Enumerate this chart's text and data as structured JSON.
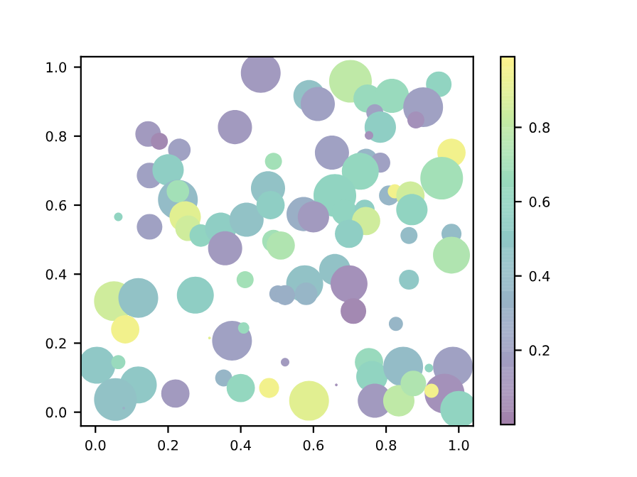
{
  "chart_data": {
    "type": "bubble",
    "x": [
      0.455,
      0.384,
      0.145,
      0.176,
      0.231,
      0.149,
      0.2,
      0.49,
      0.227,
      0.227,
      0.063,
      0.149,
      0.247,
      0.255,
      0.29,
      0.345,
      0.357,
      0.416,
      0.475,
      0.482,
      0.49,
      0.588,
      0.612,
      0.702,
      0.749,
      0.816,
      0.945,
      0.902,
      0.882,
      0.769,
      0.784,
      0.753,
      0.651,
      0.745,
      0.784,
      0.729,
      0.98,
      0.953,
      0.659,
      0.573,
      0.6,
      0.686,
      0.741,
      0.745,
      0.808,
      0.824,
      0.867,
      0.871,
      0.698,
      0.863,
      0.98,
      0.98,
      0.51,
      0.051,
      0.118,
      0.082,
      0.275,
      0.412,
      0.376,
      0.408,
      0.314,
      0.004,
      0.063,
      0.118,
      0.055,
      0.078,
      0.22,
      0.353,
      0.4,
      0.478,
      0.502,
      0.576,
      0.522,
      0.58,
      0.659,
      0.698,
      0.71,
      0.863,
      0.827,
      0.522,
      0.588,
      0.663,
      0.753,
      0.761,
      0.769,
      0.847,
      0.835,
      0.875,
      0.918,
      0.984,
      0.961,
      0.925,
      1.0
    ],
    "values": [
      0.983,
      0.826,
      0.806,
      0.785,
      0.76,
      0.686,
      0.702,
      0.727,
      0.616,
      0.64,
      0.566,
      0.537,
      0.566,
      0.533,
      0.512,
      0.533,
      0.475,
      0.558,
      0.649,
      0.6,
      0.496,
      0.917,
      0.893,
      0.959,
      0.909,
      0.917,
      0.95,
      0.884,
      0.847,
      0.868,
      0.826,
      0.802,
      0.752,
      0.731,
      0.723,
      0.698,
      0.752,
      0.678,
      0.628,
      0.574,
      0.566,
      0.579,
      0.587,
      0.554,
      0.628,
      0.64,
      0.628,
      0.587,
      0.517,
      0.512,
      0.517,
      0.455,
      0.483,
      0.322,
      0.331,
      0.24,
      0.339,
      0.384,
      0.207,
      0.244,
      0.215,
      0.136,
      0.145,
      0.079,
      0.037,
      0.012,
      0.054,
      0.099,
      0.07,
      0.07,
      0.343,
      0.372,
      0.339,
      0.343,
      0.413,
      0.372,
      0.293,
      0.384,
      0.256,
      0.145,
      0.033,
      0.079,
      0.145,
      0.103,
      0.033,
      0.132,
      0.033,
      0.083,
      0.128,
      0.132,
      0.054,
      0.062,
      0.008
    ],
    "sizes": [
      0.87,
      0.64,
      0.36,
      0.16,
      0.28,
      0.36,
      0.54,
      0.16,
      0.87,
      0.28,
      0.04,
      0.36,
      0.54,
      0.36,
      0.28,
      0.54,
      0.64,
      0.64,
      0.64,
      0.44,
      0.28,
      0.54,
      0.64,
      1,
      0.44,
      0.64,
      0.36,
      0.87,
      0.16,
      0.16,
      0.54,
      0.04,
      0.64,
      0.28,
      0.22,
      0.75,
      0.44,
      1,
      1,
      0.64,
      0.54,
      0.36,
      0.22,
      0.44,
      0.22,
      0.11,
      0.44,
      0.54,
      0.44,
      0.16,
      0.22,
      0.75,
      0.44,
      0.87,
      0.87,
      0.44,
      0.75,
      0.16,
      0.87,
      0.07,
      0.004,
      0.75,
      0.11,
      0.75,
      1,
      0.004,
      0.44,
      0.16,
      0.44,
      0.22,
      0.16,
      0.75,
      0.22,
      0.28,
      0.54,
      0.75,
      0.36,
      0.22,
      0.11,
      0.04,
      0.87,
      0.004,
      0.44,
      0.54,
      0.64,
      0.87,
      0.54,
      0.36,
      0.04,
      0.87,
      0.87,
      0.11,
      0.75
    ],
    "cvalues": [
      0.15,
      0.15,
      0.15,
      0.05,
      0.2,
      0.2,
      0.55,
      0.7,
      0.4,
      0.7,
      0.6,
      0.2,
      0.9,
      0.85,
      0.6,
      0.55,
      0.15,
      0.45,
      0.45,
      0.55,
      0.7,
      0.45,
      0.2,
      0.8,
      0.65,
      0.65,
      0.6,
      0.2,
      0.1,
      0.2,
      0.55,
      0.1,
      0.2,
      0.35,
      0.2,
      0.62,
      0.95,
      0.7,
      0.6,
      0.3,
      0.15,
      0.6,
      0.55,
      0.85,
      0.35,
      0.95,
      0.85,
      0.6,
      0.55,
      0.4,
      0.4,
      0.75,
      0.75,
      0.85,
      0.45,
      0.95,
      0.55,
      0.7,
      0.2,
      0.65,
      0.9,
      0.5,
      0.65,
      0.5,
      0.45,
      0.3,
      0.15,
      0.35,
      0.62,
      0.95,
      0.3,
      0.45,
      0.3,
      0.35,
      0.45,
      0.1,
      0.05,
      0.5,
      0.35,
      0.15,
      0.9,
      0.1,
      0.65,
      0.6,
      0.15,
      0.4,
      0.8,
      0.75,
      0.6,
      0.2,
      0.1,
      0.95,
      0.6
    ],
    "clim": [
      0.0,
      0.99
    ],
    "cticks": [
      0.2,
      0.4,
      0.6,
      0.8
    ],
    "xlim": [
      -0.04,
      1.04
    ],
    "ylim": [
      -0.04,
      1.03
    ],
    "xticks": [
      {
        "value": 0,
        "label": "0.0"
      },
      0.2,
      0.4,
      0.6,
      0.8,
      {
        "value": 1,
        "label": "1.0"
      }
    ],
    "yticks": [
      {
        "value": 0,
        "label": "0.0"
      },
      0.2,
      0.4,
      0.6,
      0.8,
      {
        "value": 1,
        "label": "1.0"
      }
    ]
  }
}
